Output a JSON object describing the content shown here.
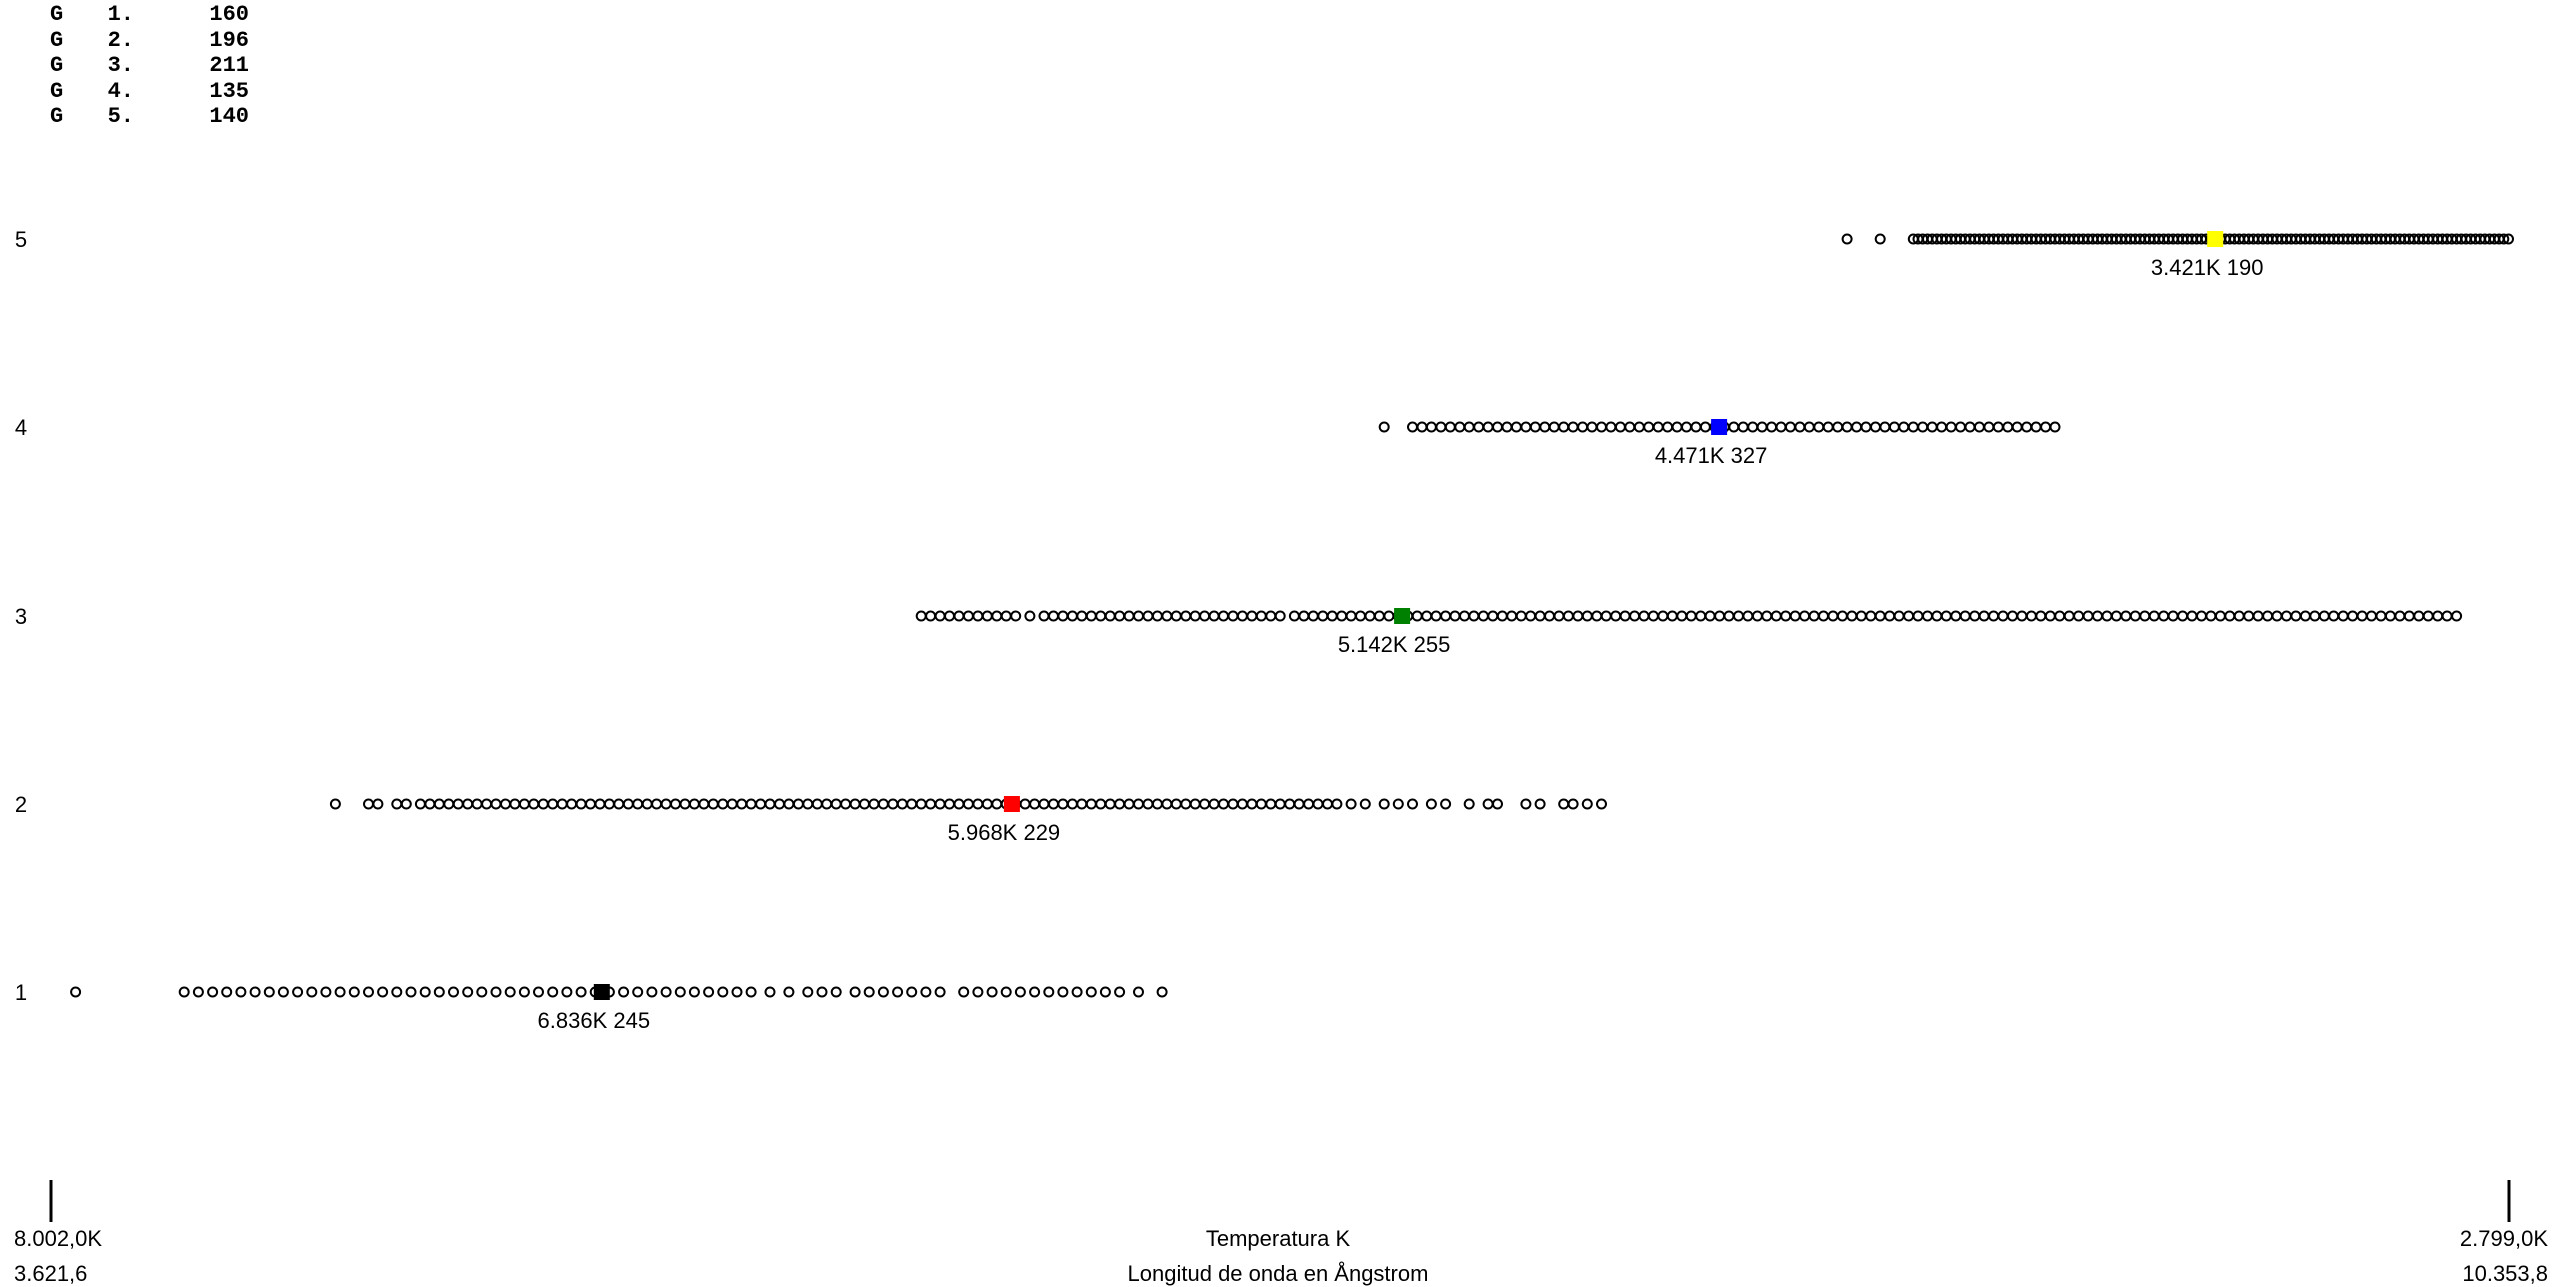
{
  "legend": [
    {
      "label": "G",
      "group": "1.",
      "count": "160"
    },
    {
      "label": "G",
      "group": "2.",
      "count": "196"
    },
    {
      "label": "G",
      "group": "3.",
      "count": "211"
    },
    {
      "label": "G",
      "group": "4.",
      "count": "135"
    },
    {
      "label": "G",
      "group": "5.",
      "count": "140"
    }
  ],
  "axis": {
    "temp_left": "8.002,0K",
    "temp_right": "2.799,0K",
    "temp_title": "Temperatura K",
    "wave_left": "3.621,6",
    "wave_right": "10.353,8",
    "wave_title": "Longitud de onda en Ångstrom"
  },
  "chart_data": {
    "type": "scatter",
    "xlabel": "Temperatura K",
    "xlabel_secondary": "Longitud de onda en Ångstrom",
    "xlim": [
      8002.0,
      2799.0
    ],
    "xlim_secondary": [
      3621.6,
      10353.8
    ],
    "y_categories": [
      "1",
      "2",
      "3",
      "4",
      "5"
    ],
    "marker_style": "open-circle",
    "groups": [
      {
        "group": "1",
        "count": 160,
        "center_temp_label": "6.836K 245",
        "center_temp": 6836,
        "center_color": "#000000",
        "points_temp": [
          7950,
          7720,
          7690,
          7660,
          7630,
          7600,
          7570,
          7540,
          7510,
          7480,
          7450,
          7420,
          7390,
          7360,
          7330,
          7300,
          7270,
          7240,
          7210,
          7180,
          7150,
          7120,
          7090,
          7060,
          7030,
          7000,
          6970,
          6940,
          6910,
          6880,
          6850,
          6820,
          6790,
          6760,
          6730,
          6700,
          6670,
          6640,
          6610,
          6580,
          6550,
          6520,
          6480,
          6440,
          6400,
          6370,
          6340,
          6300,
          6270,
          6240,
          6210,
          6180,
          6150,
          6120,
          6070,
          6040,
          6010,
          5980,
          5950,
          5920,
          5890,
          5860,
          5830,
          5800,
          5770,
          5740,
          5700,
          5650
        ]
      },
      {
        "group": "2",
        "count": 196,
        "center_temp_label": "5.968K 229",
        "center_temp": 5968,
        "center_color": "#ff0000",
        "points_temp": [
          7400,
          7330,
          7310,
          7270,
          7250,
          7220,
          7200,
          7180,
          7160,
          7140,
          7120,
          7100,
          7080,
          7060,
          7040,
          7020,
          7000,
          6980,
          6960,
          6940,
          6920,
          6900,
          6880,
          6860,
          6840,
          6820,
          6800,
          6780,
          6760,
          6740,
          6720,
          6700,
          6680,
          6660,
          6640,
          6620,
          6600,
          6580,
          6560,
          6540,
          6520,
          6500,
          6480,
          6460,
          6440,
          6420,
          6400,
          6380,
          6360,
          6340,
          6320,
          6300,
          6280,
          6260,
          6240,
          6220,
          6200,
          6180,
          6160,
          6140,
          6120,
          6100,
          6080,
          6060,
          6040,
          6020,
          6000,
          5980,
          5960,
          5940,
          5920,
          5900,
          5880,
          5860,
          5840,
          5820,
          5800,
          5780,
          5760,
          5740,
          5720,
          5700,
          5680,
          5660,
          5640,
          5620,
          5600,
          5580,
          5560,
          5540,
          5520,
          5500,
          5480,
          5460,
          5440,
          5420,
          5400,
          5380,
          5360,
          5340,
          5320,
          5300,
          5280,
          5250,
          5220,
          5180,
          5150,
          5120,
          5080,
          5050,
          5000,
          4960,
          4940,
          4880,
          4850,
          4800,
          4780,
          4750,
          4720
        ]
      },
      {
        "group": "3",
        "count": 211,
        "center_temp_label": "5.142K 255",
        "center_temp": 5142,
        "center_color": "#008000",
        "points_temp": [
          6160,
          6140,
          6120,
          6100,
          6080,
          6060,
          6040,
          6020,
          6000,
          5980,
          5960,
          5930,
          5900,
          5880,
          5860,
          5840,
          5820,
          5800,
          5780,
          5760,
          5740,
          5720,
          5700,
          5680,
          5660,
          5640,
          5620,
          5600,
          5580,
          5560,
          5540,
          5520,
          5500,
          5480,
          5460,
          5440,
          5420,
          5400,
          5370,
          5350,
          5330,
          5310,
          5290,
          5270,
          5250,
          5230,
          5210,
          5190,
          5170,
          5150,
          5130,
          5110,
          5090,
          5070,
          5050,
          5030,
          5010,
          4990,
          4970,
          4950,
          4930,
          4910,
          4890,
          4870,
          4850,
          4830,
          4810,
          4790,
          4770,
          4750,
          4730,
          4710,
          4690,
          4670,
          4650,
          4630,
          4610,
          4590,
          4570,
          4550,
          4530,
          4510,
          4490,
          4470,
          4450,
          4430,
          4410,
          4390,
          4370,
          4350,
          4330,
          4310,
          4290,
          4270,
          4250,
          4230,
          4210,
          4190,
          4170,
          4150,
          4130,
          4110,
          4090,
          4070,
          4050,
          4030,
          4010,
          3990,
          3970,
          3950,
          3930,
          3910,
          3890,
          3870,
          3850,
          3830,
          3810,
          3790,
          3770,
          3750,
          3730,
          3710,
          3690,
          3670,
          3650,
          3630,
          3610,
          3590,
          3570,
          3550,
          3530,
          3510,
          3490,
          3470,
          3450,
          3430,
          3410,
          3390,
          3370,
          3350,
          3330,
          3310,
          3290,
          3270,
          3250,
          3230,
          3210,
          3190,
          3170,
          3150,
          3130,
          3110,
          3090,
          3070,
          3050,
          3030,
          3010,
          2990,
          2970,
          2950,
          2930,
          2910
        ]
      },
      {
        "group": "4",
        "count": 135,
        "center_temp_label": "4.471K 327",
        "center_temp": 4471,
        "center_color": "#0000ff",
        "points_temp": [
          5180,
          5120,
          5100,
          5080,
          5060,
          5040,
          5020,
          5000,
          4980,
          4960,
          4940,
          4920,
          4900,
          4880,
          4860,
          4840,
          4820,
          4800,
          4780,
          4760,
          4740,
          4720,
          4700,
          4680,
          4660,
          4640,
          4620,
          4600,
          4580,
          4560,
          4540,
          4520,
          4500,
          4480,
          4460,
          4440,
          4420,
          4400,
          4380,
          4360,
          4340,
          4320,
          4300,
          4280,
          4260,
          4240,
          4220,
          4200,
          4180,
          4160,
          4140,
          4120,
          4100,
          4080,
          4060,
          4040,
          4020,
          4000,
          3980,
          3960,
          3940,
          3920,
          3900,
          3880,
          3860,
          3840,
          3820,
          3800,
          3780,
          3760
        ]
      },
      {
        "group": "5",
        "count": 140,
        "center_temp_label": "3.421K 190",
        "center_temp": 3421,
        "center_color": "#ffff00",
        "points_temp": [
          4200,
          4130,
          4060,
          4050,
          4040,
          4030,
          4020,
          4010,
          4000,
          3990,
          3980,
          3970,
          3960,
          3950,
          3940,
          3930,
          3920,
          3910,
          3900,
          3890,
          3880,
          3870,
          3860,
          3850,
          3840,
          3830,
          3820,
          3810,
          3800,
          3790,
          3780,
          3770,
          3760,
          3750,
          3740,
          3730,
          3720,
          3710,
          3700,
          3690,
          3680,
          3670,
          3660,
          3650,
          3640,
          3630,
          3620,
          3610,
          3600,
          3590,
          3580,
          3570,
          3560,
          3550,
          3540,
          3530,
          3520,
          3510,
          3500,
          3490,
          3480,
          3470,
          3460,
          3450,
          3440,
          3430,
          3420,
          3410,
          3400,
          3390,
          3380,
          3370,
          3360,
          3350,
          3340,
          3330,
          3320,
          3310,
          3300,
          3290,
          3280,
          3270,
          3260,
          3250,
          3240,
          3230,
          3220,
          3210,
          3200,
          3190,
          3180,
          3170,
          3160,
          3150,
          3140,
          3130,
          3120,
          3110,
          3100,
          3090,
          3080,
          3070,
          3060,
          3050,
          3040,
          3030,
          3020,
          3010,
          3000,
          2990,
          2980,
          2970,
          2960,
          2950,
          2940,
          2930,
          2920,
          2910,
          2900,
          2890,
          2880,
          2870,
          2860,
          2850,
          2840,
          2830,
          2820,
          2810,
          2800
        ]
      }
    ]
  }
}
